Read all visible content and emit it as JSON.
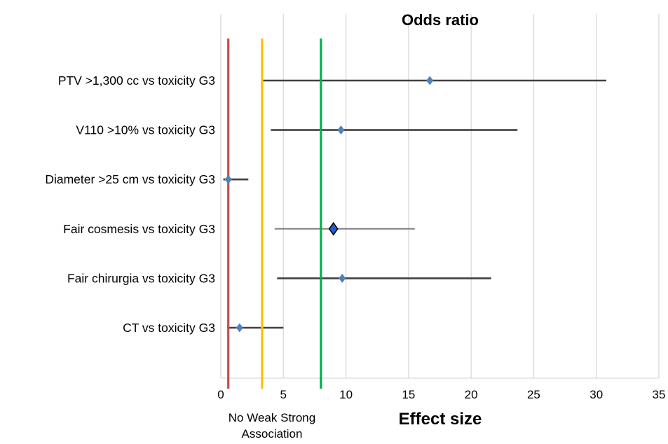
{
  "chart_data": {
    "type": "scatter",
    "title": "Odds ratio",
    "xlabel": "Effect size",
    "ylabel": "",
    "xlim": [
      0,
      35
    ],
    "xticks": [
      0,
      5,
      10,
      15,
      20,
      25,
      30,
      35
    ],
    "grid": true,
    "categories": [
      "PTV >1,300 cc vs toxicity G3",
      "V110 >10% vs toxicity G3",
      "Diameter >25 cm vs toxicity G3",
      "Fair cosmesis vs toxicity G3",
      "Fair chirurgia vs toxicity G3",
      "CT vs toxicity G3"
    ],
    "points": [
      {
        "label": "PTV >1,300 cc vs toxicity G3",
        "estimate": 16.7,
        "lower": 3.3,
        "upper": 30.8,
        "highlight": false
      },
      {
        "label": "V110 >10% vs toxicity G3",
        "estimate": 9.6,
        "lower": 4.0,
        "upper": 23.7,
        "highlight": false
      },
      {
        "label": "Diameter >25 cm vs toxicity G3",
        "estimate": 0.6,
        "lower": 0.2,
        "upper": 2.2,
        "highlight": false
      },
      {
        "label": "Fair cosmesis vs toxicity G3",
        "estimate": 9.0,
        "lower": 4.3,
        "upper": 15.5,
        "highlight": true
      },
      {
        "label": "Fair chirurgia vs toxicity G3",
        "estimate": 9.7,
        "lower": 4.5,
        "upper": 21.6,
        "highlight": false
      },
      {
        "label": "CT vs toxicity G3",
        "estimate": 1.5,
        "lower": 0.5,
        "upper": 5.0,
        "highlight": false
      }
    ],
    "thresholds": [
      {
        "value": 0.6,
        "color": "#c0504d"
      },
      {
        "value": 3.3,
        "color": "#ffc000"
      },
      {
        "value": 8.0,
        "color": "#00b050"
      }
    ],
    "threshold_labels": [
      "No Weak Strong",
      "Association"
    ],
    "colors": {
      "marker": "#4f81bd",
      "marker_highlight": "#1f5fd6",
      "whisker": "#404040",
      "whisker_highlight": "#808080",
      "grid": "#d9d9d9"
    }
  }
}
